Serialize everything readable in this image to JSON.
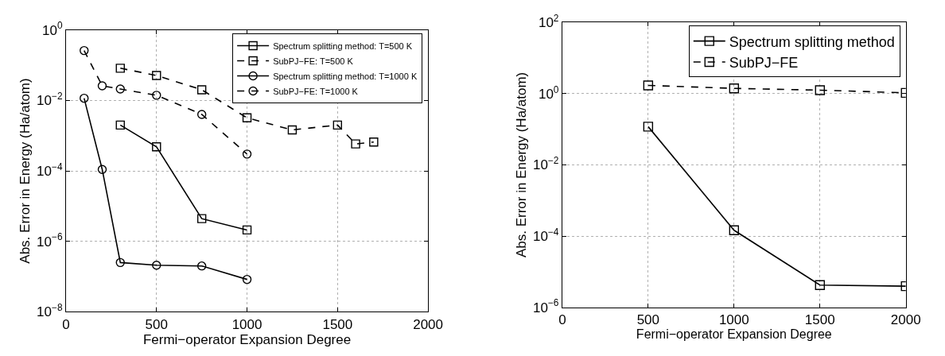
{
  "chart_data": [
    {
      "type": "line",
      "xlabel": "Fermi−operator Expansion Degree",
      "ylabel": "Abs. Error in Energy (Ha/atom)",
      "log": "y",
      "grid": true,
      "legend": "top right",
      "xlim": [
        0,
        2000
      ],
      "xticks": [
        0,
        500,
        1000,
        1500,
        2000
      ],
      "ylim": [
        1e-08,
        1
      ],
      "yticks": [
        {
          "value": 1e-08,
          "label": "10$^{−8}$"
        },
        {
          "value": 1e-06,
          "label": "10$^{−6}$"
        },
        {
          "value": 0.0001,
          "label": "10$^{−4}$"
        },
        {
          "value": 0.01,
          "label": "10$^{−2}$"
        },
        {
          "value": 1,
          "label": "10$^{0}$"
        }
      ],
      "series": [
        {
          "name": "Spectrum splitting method: T=500 K",
          "color": "#000000",
          "marker": "square",
          "line_style": "solid",
          "x": [
            300,
            500,
            750,
            1000
          ],
          "values": [
            0.002,
            0.00048,
            4.4e-06,
            2.1e-06
          ]
        },
        {
          "name": "SubPJ−FE: T=500 K",
          "color": "#000000",
          "marker": "square",
          "line_style": "dashed",
          "x": [
            300,
            500,
            750,
            1000,
            1250,
            1500,
            1600,
            1700
          ],
          "values": [
            0.082,
            0.051,
            0.02,
            0.0032,
            0.00145,
            0.002,
            0.00058,
            0.00066
          ]
        },
        {
          "name": "Spectrum splitting method: T=1000 K",
          "color": "#000000",
          "marker": "circle",
          "line_style": "solid",
          "x": [
            100,
            200,
            300,
            500,
            750,
            1000
          ],
          "values": [
            0.0115,
            0.00011,
            2.5e-07,
            2.1e-07,
            2e-07,
            8.3e-08
          ]
        },
        {
          "name": "SubPJ−FE: T=1000 K",
          "color": "#000000",
          "marker": "circle",
          "line_style": "dashed",
          "x": [
            100,
            200,
            300,
            500,
            750,
            1000
          ],
          "values": [
            0.26,
            0.026,
            0.021,
            0.014,
            0.004,
            0.0003
          ]
        }
      ]
    },
    {
      "type": "line",
      "xlabel": "Fermi−operator Expansion Degree",
      "ylabel": "Abs. Error in Energy (Ha/atom)",
      "log": "y",
      "grid": true,
      "legend": "top right",
      "xlim": [
        0,
        2000
      ],
      "xticks": [
        0,
        500,
        1000,
        1500,
        2000
      ],
      "ylim": [
        1e-06,
        100
      ],
      "yticks": [
        {
          "value": 1e-06,
          "label": "10$^{−6}$"
        },
        {
          "value": 0.0001,
          "label": "10$^{−4}$"
        },
        {
          "value": 0.01,
          "label": "10$^{−2}$"
        },
        {
          "value": 1,
          "label": "10$^{0}$"
        },
        {
          "value": 100,
          "label": "10$^{2}$"
        }
      ],
      "series": [
        {
          "name": "Spectrum splitting method",
          "color": "#000000",
          "marker": "square",
          "line_style": "solid",
          "x": [
            500,
            1000,
            1500,
            2000
          ],
          "values": [
            0.118,
            0.000145,
            4.2e-06,
            3.9e-06
          ]
        },
        {
          "name": "SubPJ−FE",
          "color": "#000000",
          "marker": "square",
          "line_style": "dashed",
          "x": [
            500,
            1000,
            1500,
            2000
          ],
          "values": [
            1.7,
            1.4,
            1.25,
            1.05
          ]
        }
      ]
    }
  ]
}
